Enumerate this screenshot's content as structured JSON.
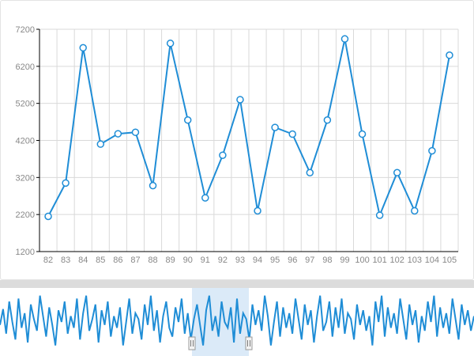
{
  "chart_data": {
    "type": "line",
    "title": "",
    "xlabel": "",
    "ylabel": "",
    "x": [
      "82",
      "83",
      "84",
      "85",
      "86",
      "87",
      "88",
      "89",
      "90",
      "91",
      "92",
      "93",
      "94",
      "95",
      "96",
      "97",
      "98",
      "99",
      "100",
      "101",
      "102",
      "103",
      "104",
      "105"
    ],
    "values": [
      2150,
      3050,
      6700,
      4100,
      4380,
      4420,
      2980,
      6820,
      4750,
      2650,
      3800,
      5300,
      2300,
      4550,
      4370,
      3330,
      4750,
      6940,
      4370,
      2180,
      3330,
      2300,
      3920,
      6500
    ],
    "ylim": [
      1200,
      7200
    ],
    "yticks": [
      "1200",
      "2200",
      "3200",
      "4200",
      "5200",
      "6200",
      "7200"
    ],
    "grid": true,
    "colors": {
      "line": "#1f8dd6",
      "grid": "#d9d9d9",
      "axis": "#000000",
      "tick_label": "#888888",
      "marker_fill": "#ffffff"
    }
  },
  "navigator": {
    "series": [
      0.45,
      0.72,
      0.3,
      0.85,
      0.5,
      0.2,
      0.9,
      0.4,
      0.65,
      0.15,
      0.8,
      0.55,
      0.35,
      0.95,
      0.6,
      0.25,
      0.75,
      0.45,
      0.1,
      0.7,
      0.5,
      0.85,
      0.3,
      0.6,
      0.4,
      0.9,
      0.2,
      0.65,
      0.95,
      0.35,
      0.55,
      0.8,
      0.15,
      0.7,
      0.45,
      0.85,
      0.25,
      0.6,
      0.4,
      0.75,
      0.1,
      0.5,
      0.9,
      0.3,
      0.65,
      0.55,
      0.2,
      0.8,
      0.45,
      0.95,
      0.35,
      0.7,
      0.15,
      0.6,
      0.85,
      0.4,
      0.25,
      0.75,
      0.5,
      0.9,
      0.3,
      0.65,
      0.2,
      0.55,
      0.8,
      0.45,
      0.1,
      0.7,
      0.95,
      0.35,
      0.6,
      0.25,
      0.85,
      0.5,
      0.4,
      0.75,
      0.15,
      0.9,
      0.3,
      0.65,
      0.55,
      0.2,
      0.8,
      0.45,
      0.7,
      0.35,
      0.95,
      0.6,
      0.1,
      0.5,
      0.85,
      0.25,
      0.75,
      0.4,
      0.65,
      0.3,
      0.9,
      0.55,
      0.2,
      0.8,
      0.45,
      0.7,
      0.15,
      0.6,
      0.95,
      0.35,
      0.5,
      0.85,
      0.25,
      0.75,
      0.4,
      0.9,
      0.3,
      0.65,
      0.55,
      0.2,
      0.8,
      0.45,
      0.7,
      0.35,
      0.6,
      0.1,
      0.85,
      0.5,
      0.95,
      0.25,
      0.75,
      0.4,
      0.65,
      0.3,
      0.9,
      0.55,
      0.2,
      0.8,
      0.45,
      0.7,
      0.15,
      0.6,
      0.35,
      0.85,
      0.5,
      0.95,
      0.25,
      0.75,
      0.4,
      0.65,
      0.3,
      0.9,
      0.55,
      0.2,
      0.8,
      0.45,
      0.7,
      0.35,
      0.6
    ],
    "selection_range": [
      0.405,
      0.525
    ],
    "colors": {
      "line": "#1f8dd6",
      "selection": "#dbeaf8",
      "handle": "#f4f4f4"
    }
  }
}
